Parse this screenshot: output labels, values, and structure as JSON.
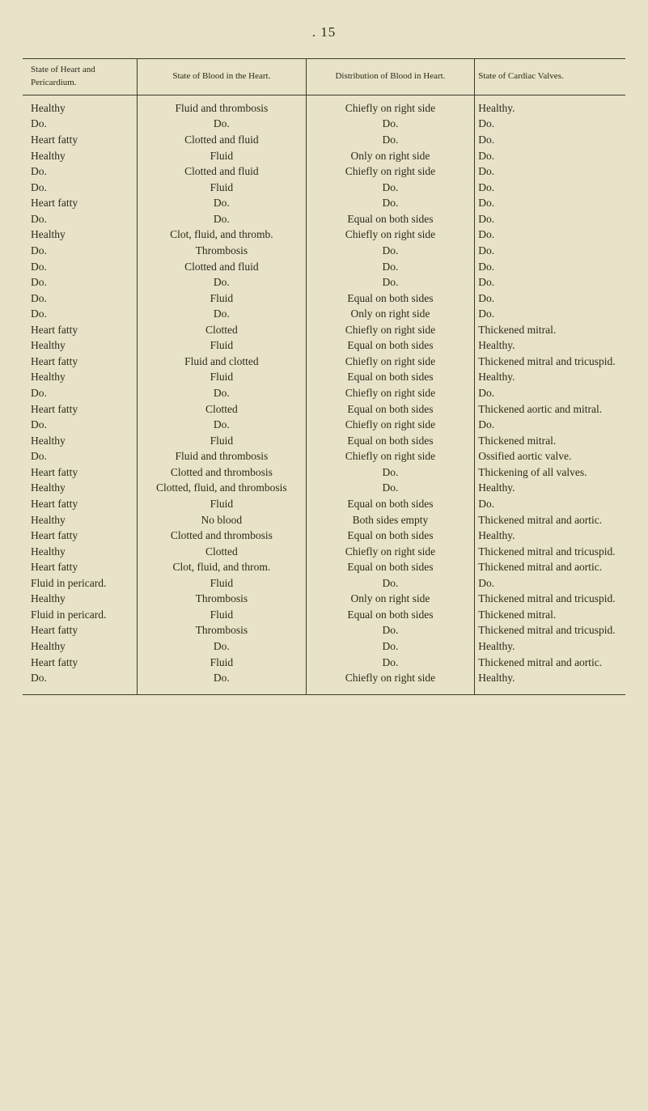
{
  "page_number": ". 15",
  "columns": [
    "State of Heart and Pericardium.",
    "State of Blood in the Heart.",
    "Distribution of Blood in Heart.",
    "State of Cardiac Valves."
  ],
  "rows": [
    [
      "Healthy",
      "Fluid and thrombosis",
      "Chiefly on right side",
      "Healthy."
    ],
    [
      "Do.",
      "Do.",
      "Do.",
      "Do."
    ],
    [
      "Heart fatty",
      "Clotted and fluid",
      "Do.",
      "Do."
    ],
    [
      "Healthy",
      "Fluid",
      "Only on right side",
      "Do."
    ],
    [
      "Do.",
      "Clotted and fluid",
      "Chiefly on right side",
      "Do."
    ],
    [
      "Do.",
      "Fluid",
      "Do.",
      "Do."
    ],
    [
      "Heart fatty",
      "Do.",
      "Do.",
      "Do."
    ],
    [
      "Do.",
      "Do.",
      "Equal on both sides",
      "Do."
    ],
    [
      "Healthy",
      "Clot, fluid, and thromb.",
      "Chiefly on right side",
      "Do."
    ],
    [
      "Do.",
      "Thrombosis",
      "Do.",
      "Do."
    ],
    [
      "Do.",
      "Clotted and fluid",
      "Do.",
      "Do."
    ],
    [
      "Do.",
      "Do.",
      "Do.",
      "Do."
    ],
    [
      "Do.",
      "Fluid",
      "Equal on both sides",
      "Do."
    ],
    [
      "Do.",
      "Do.",
      "Only on right side",
      "Do."
    ],
    [
      "Heart fatty",
      "Clotted",
      "Chiefly on right side",
      "Thickened mitral."
    ],
    [
      "Healthy",
      "Fluid",
      "Equal on both sides",
      "Healthy."
    ],
    [
      "Heart fatty",
      "Fluid and clotted",
      "Chiefly on right side",
      "Thickened mitral and tricuspid."
    ],
    [
      "Healthy",
      "Fluid",
      "Equal on both sides",
      "Healthy."
    ],
    [
      "Do.",
      "Do.",
      "Chiefly on right side",
      "Do."
    ],
    [
      "Heart fatty",
      "Clotted",
      "Equal on both sides",
      "Thickened aortic and mitral."
    ],
    [
      "Do.",
      "Do.",
      "Chiefly on right side",
      "Do."
    ],
    [
      "Healthy",
      "Fluid",
      "Equal on both sides",
      "Thickened mitral."
    ],
    [
      "Do.",
      "Fluid and thrombosis",
      "Chiefly on right side",
      "Ossified aortic valve."
    ],
    [
      "Heart fatty",
      "Clotted and thrombosis",
      "Do.",
      "Thickening of all valves."
    ],
    [
      "Healthy",
      "Clotted, fluid, and thrombosis",
      "Do.",
      "Healthy."
    ],
    [
      "Heart fatty",
      "Fluid",
      "Equal on both sides",
      "Do."
    ],
    [
      "Healthy",
      "No blood",
      "Both sides empty",
      "Thickened mitral and aortic."
    ],
    [
      "Heart fatty",
      "Clotted and thrombosis",
      "Equal on both sides",
      "Healthy."
    ],
    [
      "Healthy",
      "Clotted",
      "Chiefly on right side",
      "Thickened mitral and tricuspid."
    ],
    [
      "Heart fatty",
      "Clot, fluid, and throm.",
      "Equal on both sides",
      "Thickened mitral and aortic."
    ],
    [
      "Fluid in pericard.",
      "Fluid",
      "Do.",
      "Do."
    ],
    [
      "Healthy",
      "Thrombosis",
      "Only on right side",
      "Thickened mitral and tricuspid."
    ],
    [
      "Fluid in pericard.",
      "Fluid",
      "Equal on both sides",
      "Thickened mitral."
    ],
    [
      "Heart fatty",
      "Thrombosis",
      "Do.",
      "Thickened mitral and tricuspid."
    ],
    [
      "Healthy",
      "Do.",
      "Do.",
      "Healthy."
    ],
    [
      "Heart fatty",
      "Fluid",
      "Do.",
      "Thickened mitral and aortic."
    ],
    [
      "Do.",
      "Do.",
      "Chiefly on right side",
      "Healthy."
    ]
  ]
}
